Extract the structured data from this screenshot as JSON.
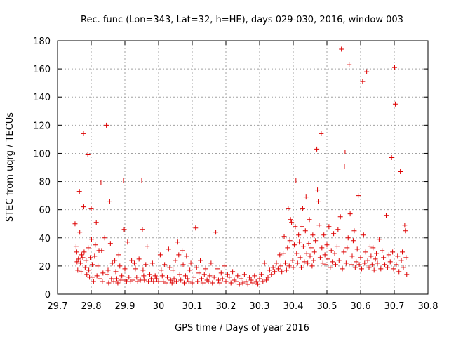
{
  "chart_data": {
    "type": "scatter",
    "title": "Rec. func (Lon=343, Lat=32, h=HE), days 029-030, 2016, window 003",
    "xlabel": "GPS time / Days of year 2016",
    "ylabel": "STEC from uqrg / TECUs",
    "xlim": [
      29.7,
      30.8
    ],
    "ylim": [
      0,
      180
    ],
    "xticks": [
      "29.7",
      "29.8",
      "29.9",
      "30",
      "30.1",
      "30.2",
      "30.3",
      "30.4",
      "30.5",
      "30.6",
      "30.7",
      "30.8"
    ],
    "xtick_values": [
      29.7,
      29.8,
      29.9,
      30.0,
      30.1,
      30.2,
      30.3,
      30.4,
      30.5,
      30.6,
      30.7,
      30.8
    ],
    "yticks": [
      "0",
      "20",
      "40",
      "60",
      "80",
      "100",
      "120",
      "140",
      "160",
      "180"
    ],
    "ytick_values": [
      0,
      20,
      40,
      60,
      80,
      100,
      120,
      140,
      160,
      180
    ],
    "grid": true,
    "marker": "+",
    "marker_color": "#dd0000",
    "grid_color": "#a0a0a0",
    "series": [
      {
        "name": "STEC",
        "points": [
          [
            29.752,
            50
          ],
          [
            29.755,
            34
          ],
          [
            29.757,
            30
          ],
          [
            29.758,
            23
          ],
          [
            29.76,
            17
          ],
          [
            29.762,
            25
          ],
          [
            29.765,
            73
          ],
          [
            29.766,
            44
          ],
          [
            29.768,
            22
          ],
          [
            29.77,
            16
          ],
          [
            29.772,
            28
          ],
          [
            29.775,
            26
          ],
          [
            29.777,
            114
          ],
          [
            29.778,
            62
          ],
          [
            29.779,
            30
          ],
          [
            29.782,
            19
          ],
          [
            29.785,
            24
          ],
          [
            29.787,
            14
          ],
          [
            29.79,
            99
          ],
          [
            29.791,
            33
          ],
          [
            29.793,
            17
          ],
          [
            29.795,
            12
          ],
          [
            29.797,
            26
          ],
          [
            29.8,
            61
          ],
          [
            29.801,
            39
          ],
          [
            29.803,
            21
          ],
          [
            29.805,
            12
          ],
          [
            29.807,
            9
          ],
          [
            29.81,
            27
          ],
          [
            29.812,
            35
          ],
          [
            29.815,
            51
          ],
          [
            29.817,
            13
          ],
          [
            29.82,
            20
          ],
          [
            29.823,
            31
          ],
          [
            29.826,
            11
          ],
          [
            29.829,
            79
          ],
          [
            29.831,
            31
          ],
          [
            29.833,
            9
          ],
          [
            29.835,
            15
          ],
          [
            29.84,
            40
          ],
          [
            29.845,
            120
          ],
          [
            29.847,
            14
          ],
          [
            29.85,
            17
          ],
          [
            29.852,
            8
          ],
          [
            29.855,
            66
          ],
          [
            29.857,
            36
          ],
          [
            29.86,
            11
          ],
          [
            29.863,
            22
          ],
          [
            29.867,
            9
          ],
          [
            29.87,
            24
          ],
          [
            29.873,
            16
          ],
          [
            29.876,
            11
          ],
          [
            29.879,
            8
          ],
          [
            29.882,
            28
          ],
          [
            29.885,
            20
          ],
          [
            29.888,
            10
          ],
          [
            29.891,
            13
          ],
          [
            29.896,
            81
          ],
          [
            29.898,
            46
          ],
          [
            29.9,
            18
          ],
          [
            29.903,
            10
          ],
          [
            29.905,
            9
          ],
          [
            29.908,
            37
          ],
          [
            29.912,
            12
          ],
          [
            29.916,
            9
          ],
          [
            29.92,
            24
          ],
          [
            29.924,
            10
          ],
          [
            29.928,
            22
          ],
          [
            29.931,
            18
          ],
          [
            29.935,
            12
          ],
          [
            29.938,
            9
          ],
          [
            29.942,
            25
          ],
          [
            29.946,
            10
          ],
          [
            29.95,
            81
          ],
          [
            29.952,
            46
          ],
          [
            29.954,
            17
          ],
          [
            29.956,
            13
          ],
          [
            29.958,
            10
          ],
          [
            29.962,
            21
          ],
          [
            29.966,
            34
          ],
          [
            29.97,
            9
          ],
          [
            29.974,
            14
          ],
          [
            29.978,
            11
          ],
          [
            29.982,
            22
          ],
          [
            29.985,
            9
          ],
          [
            29.99,
            13
          ],
          [
            29.995,
            11
          ],
          [
            30.0,
            9
          ],
          [
            30.005,
            28
          ],
          [
            30.008,
            17
          ],
          [
            30.011,
            13
          ],
          [
            30.014,
            9
          ],
          [
            30.018,
            21
          ],
          [
            30.022,
            8
          ],
          [
            30.026,
            12
          ],
          [
            30.03,
            32
          ],
          [
            30.033,
            19
          ],
          [
            30.036,
            10
          ],
          [
            30.04,
            8
          ],
          [
            30.043,
            17
          ],
          [
            30.046,
            11
          ],
          [
            30.05,
            24
          ],
          [
            30.053,
            9
          ],
          [
            30.057,
            37
          ],
          [
            30.06,
            28
          ],
          [
            30.063,
            14
          ],
          [
            30.066,
            10
          ],
          [
            30.07,
            31
          ],
          [
            30.073,
            21
          ],
          [
            30.076,
            8
          ],
          [
            30.08,
            13
          ],
          [
            30.083,
            27
          ],
          [
            30.086,
            11
          ],
          [
            30.09,
            9
          ],
          [
            30.093,
            17
          ],
          [
            30.096,
            22
          ],
          [
            30.1,
            8
          ],
          [
            30.105,
            12
          ],
          [
            30.11,
            47
          ],
          [
            30.113,
            19
          ],
          [
            30.116,
            9
          ],
          [
            30.12,
            15
          ],
          [
            30.124,
            24
          ],
          [
            30.128,
            11
          ],
          [
            30.132,
            8
          ],
          [
            30.136,
            14
          ],
          [
            30.14,
            18
          ],
          [
            30.144,
            10
          ],
          [
            30.148,
            9
          ],
          [
            30.152,
            13
          ],
          [
            30.156,
            22
          ],
          [
            30.16,
            8
          ],
          [
            30.165,
            12
          ],
          [
            30.17,
            44
          ],
          [
            30.174,
            18
          ],
          [
            30.178,
            10
          ],
          [
            30.182,
            8
          ],
          [
            30.186,
            15
          ],
          [
            30.19,
            11
          ],
          [
            30.195,
            20
          ],
          [
            30.2,
            9
          ],
          [
            30.205,
            14
          ],
          [
            30.21,
            12
          ],
          [
            30.215,
            8
          ],
          [
            30.22,
            16
          ],
          [
            30.225,
            10
          ],
          [
            30.23,
            9
          ],
          [
            30.235,
            13
          ],
          [
            30.24,
            7
          ],
          [
            30.245,
            11
          ],
          [
            30.25,
            8
          ],
          [
            30.255,
            14
          ],
          [
            30.26,
            9
          ],
          [
            30.265,
            7
          ],
          [
            30.27,
            12
          ],
          [
            30.275,
            10
          ],
          [
            30.28,
            8
          ],
          [
            30.285,
            13
          ],
          [
            30.29,
            9
          ],
          [
            30.295,
            7
          ],
          [
            30.3,
            11
          ],
          [
            30.305,
            14
          ],
          [
            30.31,
            9
          ],
          [
            30.315,
            22
          ],
          [
            30.32,
            10
          ],
          [
            30.325,
            12
          ],
          [
            30.33,
            17
          ],
          [
            30.335,
            14
          ],
          [
            30.34,
            19
          ],
          [
            30.345,
            16
          ],
          [
            30.35,
            22
          ],
          [
            30.355,
            18
          ],
          [
            30.36,
            28
          ],
          [
            30.363,
            20
          ],
          [
            30.366,
            16
          ],
          [
            30.37,
            29
          ],
          [
            30.373,
            41
          ],
          [
            30.376,
            22
          ],
          [
            30.38,
            17
          ],
          [
            30.383,
            33
          ],
          [
            30.385,
            61
          ],
          [
            30.388,
            20
          ],
          [
            30.39,
            38
          ],
          [
            30.392,
            53
          ],
          [
            30.395,
            51
          ],
          [
            30.398,
            24
          ],
          [
            30.4,
            19
          ],
          [
            30.403,
            35
          ],
          [
            30.406,
            48
          ],
          [
            30.408,
            81
          ],
          [
            30.41,
            29
          ],
          [
            30.413,
            22
          ],
          [
            30.416,
            42
          ],
          [
            30.418,
            37
          ],
          [
            30.421,
            26
          ],
          [
            30.424,
            19
          ],
          [
            30.426,
            48
          ],
          [
            30.428,
            61
          ],
          [
            30.43,
            34
          ],
          [
            30.433,
            23
          ],
          [
            30.436,
            45
          ],
          [
            30.438,
            69
          ],
          [
            30.44,
            29
          ],
          [
            30.443,
            22
          ],
          [
            30.446,
            36
          ],
          [
            30.448,
            53
          ],
          [
            30.45,
            27
          ],
          [
            30.453,
            33
          ],
          [
            30.456,
            20
          ],
          [
            30.458,
            42
          ],
          [
            30.46,
            24
          ],
          [
            30.463,
            30
          ],
          [
            30.466,
            38
          ],
          [
            30.47,
            103
          ],
          [
            30.472,
            74
          ],
          [
            30.474,
            66
          ],
          [
            30.477,
            49
          ],
          [
            30.48,
            26
          ],
          [
            30.483,
            114
          ],
          [
            30.485,
            33
          ],
          [
            30.488,
            22
          ],
          [
            30.491,
            42
          ],
          [
            30.494,
            28
          ],
          [
            30.497,
            21
          ],
          [
            30.5,
            35
          ],
          [
            30.503,
            25
          ],
          [
            30.506,
            48
          ],
          [
            30.51,
            19
          ],
          [
            30.513,
            31
          ],
          [
            30.516,
            23
          ],
          [
            30.52,
            43
          ],
          [
            30.523,
            29
          ],
          [
            30.526,
            21
          ],
          [
            30.53,
            34
          ],
          [
            30.533,
            46
          ],
          [
            30.536,
            24
          ],
          [
            30.54,
            55
          ],
          [
            30.543,
            174
          ],
          [
            30.546,
            18
          ],
          [
            30.55,
            30
          ],
          [
            30.552,
            91
          ],
          [
            30.554,
            101
          ],
          [
            30.557,
            22
          ],
          [
            30.56,
            33
          ],
          [
            30.563,
            40
          ],
          [
            30.566,
            163
          ],
          [
            30.569,
            57
          ],
          [
            30.572,
            21
          ],
          [
            30.575,
            27
          ],
          [
            30.578,
            38
          ],
          [
            30.581,
            45
          ],
          [
            30.584,
            19
          ],
          [
            30.587,
            23
          ],
          [
            30.59,
            32
          ],
          [
            30.593,
            70
          ],
          [
            30.596,
            21
          ],
          [
            30.6,
            26
          ],
          [
            30.603,
            18
          ],
          [
            30.606,
            151
          ],
          [
            30.609,
            42
          ],
          [
            30.612,
            22
          ],
          [
            30.615,
            30
          ],
          [
            30.618,
            158
          ],
          [
            30.621,
            24
          ],
          [
            30.625,
            19
          ],
          [
            30.628,
            34
          ],
          [
            30.631,
            27
          ],
          [
            30.634,
            21
          ],
          [
            30.637,
            33
          ],
          [
            30.64,
            17
          ],
          [
            30.644,
            25
          ],
          [
            30.647,
            29
          ],
          [
            30.65,
            22
          ],
          [
            30.655,
            39
          ],
          [
            30.66,
            18
          ],
          [
            30.664,
            31
          ],
          [
            30.668,
            26
          ],
          [
            30.672,
            21
          ],
          [
            30.676,
            56
          ],
          [
            30.68,
            19
          ],
          [
            30.684,
            28
          ],
          [
            30.688,
            23
          ],
          [
            30.692,
            97
          ],
          [
            30.695,
            30
          ],
          [
            30.698,
            18
          ],
          [
            30.701,
            161
          ],
          [
            30.703,
            135
          ],
          [
            30.706,
            21
          ],
          [
            30.71,
            27
          ],
          [
            30.714,
            16
          ],
          [
            30.718,
            87
          ],
          [
            30.721,
            24
          ],
          [
            30.724,
            30
          ],
          [
            30.727,
            19
          ],
          [
            30.731,
            49
          ],
          [
            30.733,
            45
          ],
          [
            30.735,
            26
          ],
          [
            30.737,
            14
          ]
        ]
      }
    ]
  }
}
